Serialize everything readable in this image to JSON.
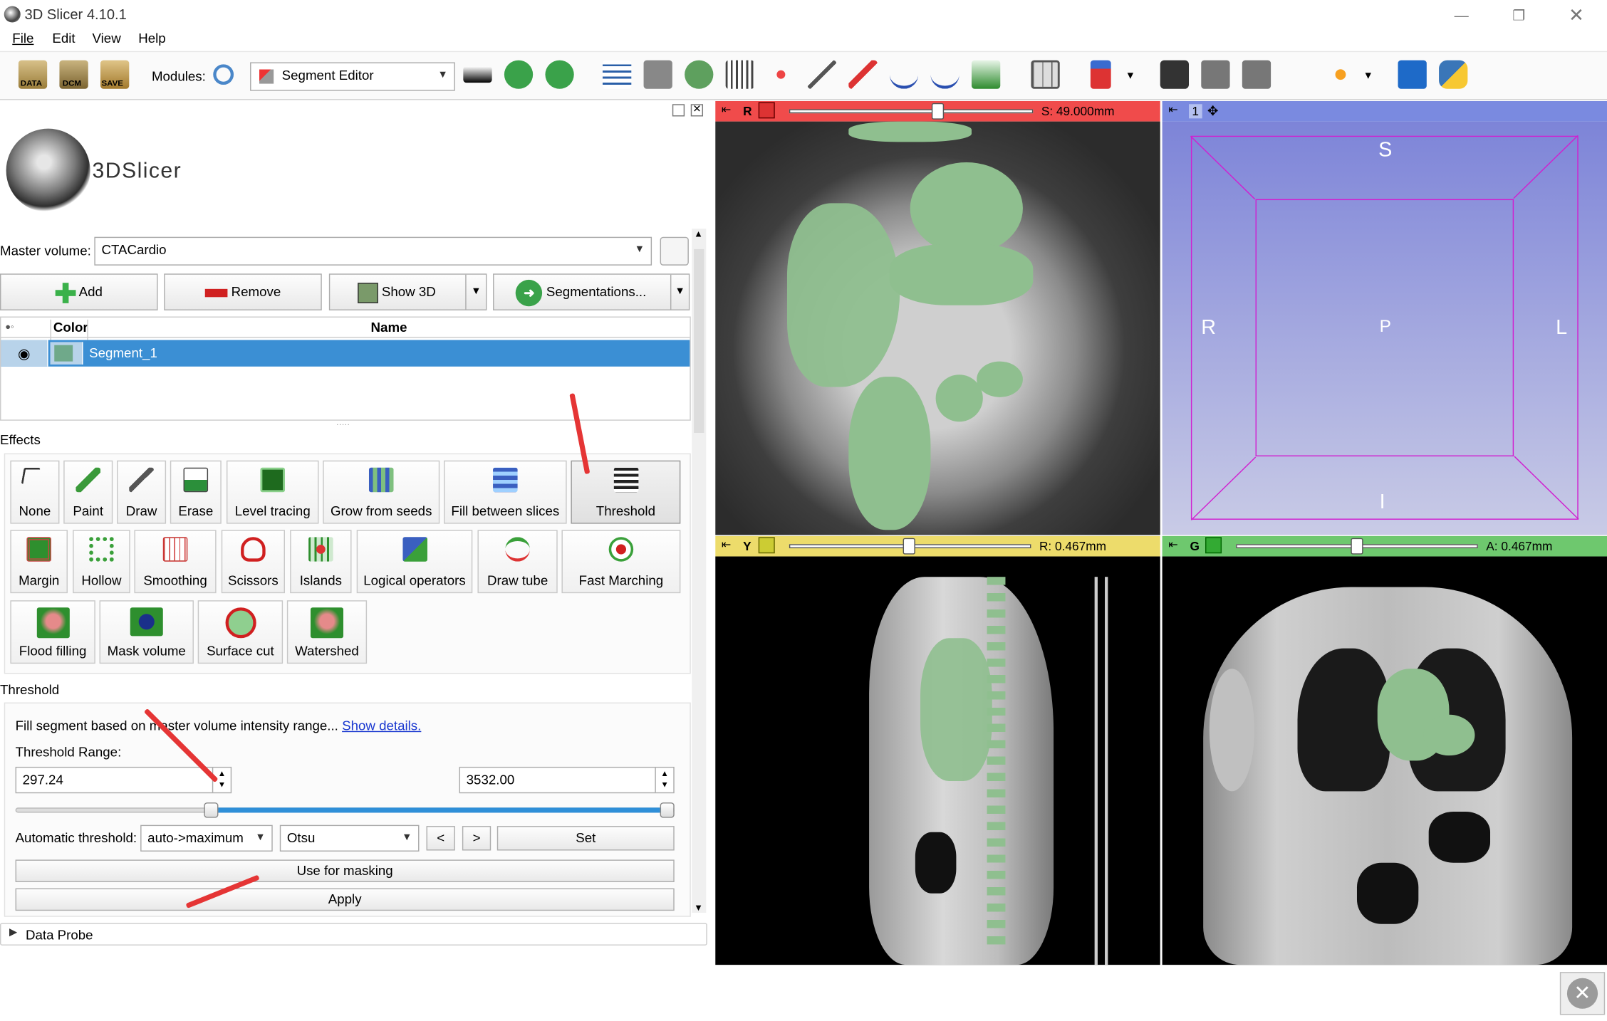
{
  "window": {
    "title": "3D Slicer 4.10.1"
  },
  "menu": [
    "File",
    "Edit",
    "View",
    "Help"
  ],
  "toolbar": {
    "buttons": {
      "data": "DATA",
      "dcm": "DCM",
      "save": "SAVE"
    },
    "modules_label": "Modules:",
    "module_selected": "Segment Editor"
  },
  "logo": {
    "text": "3DSlicer"
  },
  "master_volume": {
    "label": "Master volume:",
    "value": "CTACardio"
  },
  "segment_buttons": {
    "add": "Add",
    "remove": "Remove",
    "show3d": "Show 3D",
    "segmentations": "Segmentations..."
  },
  "segment_table": {
    "col_color": "Color",
    "col_name": "Name",
    "rows": [
      {
        "name": "Segment_1",
        "color": "#6fa98a"
      }
    ]
  },
  "effects": {
    "label": "Effects",
    "row1": [
      "None",
      "Paint",
      "Draw",
      "Erase",
      "Level tracing",
      "Grow from seeds",
      "Fill between slices",
      "Threshold"
    ],
    "row2": [
      "Margin",
      "Hollow",
      "Smoothing",
      "Scissors",
      "Islands",
      "Logical operators",
      "Draw tube",
      "Fast Marching"
    ],
    "row3": [
      "Flood filling",
      "Mask volume",
      "Surface cut",
      "Watershed"
    ]
  },
  "threshold": {
    "section_label": "Threshold",
    "help_text": "Fill segment based on master volume intensity range...",
    "help_link": "Show details.",
    "range_label": "Threshold Range:",
    "min": "297.24",
    "max": "3532.00",
    "auto_label": "Automatic threshold:",
    "auto_mode": "auto->maximum",
    "auto_method": "Otsu",
    "prev": "<",
    "next": ">",
    "set": "Set",
    "use_for_masking": "Use for masking",
    "apply": "Apply"
  },
  "data_probe": {
    "label": "Data Probe"
  },
  "views": {
    "red": {
      "letter": "R",
      "offset": "S: 49.000mm",
      "color": "#f04b4b",
      "slider_fraction": 0.6
    },
    "yellow": {
      "letter": "Y",
      "offset": "R: 0.467mm",
      "color": "#eddc6b",
      "slider_fraction": 0.5
    },
    "green": {
      "letter": "G",
      "offset": "A: 0.467mm",
      "color": "#6ec86e",
      "slider_fraction": 0.5
    },
    "threed": {
      "label": "1",
      "orient": {
        "S": "S",
        "R": "R",
        "P": "P",
        "L": "L",
        "I": "I"
      }
    }
  }
}
